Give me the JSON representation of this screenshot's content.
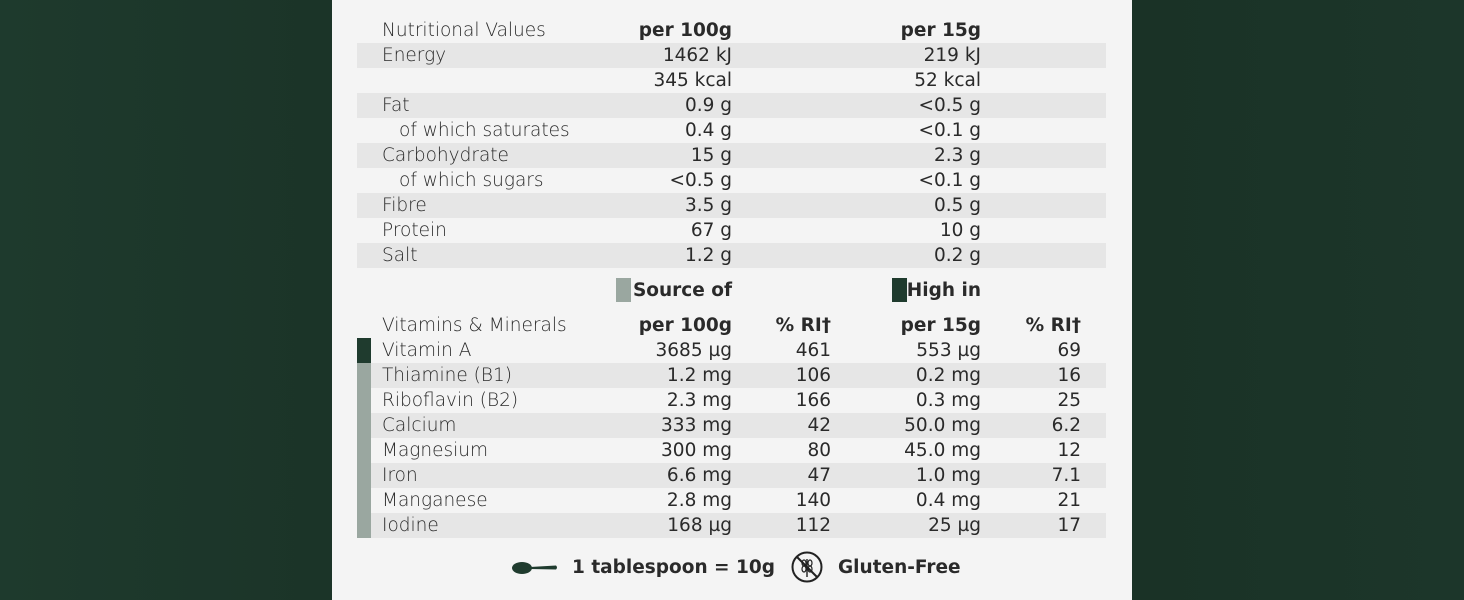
{
  "nutrition": {
    "header": {
      "label": "Nutritional Values",
      "per100": "per 100g",
      "perServing": "per 15g"
    },
    "rows": [
      {
        "label": "Energy",
        "per100": "1462 kJ",
        "perServing": "219 kJ"
      },
      {
        "label": "",
        "per100": "345 kcal",
        "perServing": "52 kcal"
      },
      {
        "label": "Fat",
        "per100": "0.9 g",
        "perServing": "<0.5 g"
      },
      {
        "label": "of which saturates",
        "per100": "0.4 g",
        "perServing": "<0.1 g"
      },
      {
        "label": "Carbohydrate",
        "per100": "15 g",
        "perServing": "2.3 g"
      },
      {
        "label": "of which sugars",
        "per100": "<0.5 g",
        "perServing": "<0.1 g"
      },
      {
        "label": "Fibre",
        "per100": "3.5 g",
        "perServing": "0.5 g"
      },
      {
        "label": "Protein",
        "per100": "67 g",
        "perServing": "10 g"
      },
      {
        "label": "Salt",
        "per100": "1.2 g",
        "perServing": "0.2 g"
      }
    ]
  },
  "legend": {
    "source": "Source of",
    "high": "High in",
    "sourceColor": "#9aa7a0",
    "highColor": "#1f3b2e"
  },
  "vitamins": {
    "header": {
      "label": "Vitamins & Minerals",
      "per100": "per 100g",
      "ri100": "% RI†",
      "perServing": "per 15g",
      "riServing": "% RI†"
    },
    "rows": [
      {
        "label": "Vitamin A",
        "per100": "3685 µg",
        "ri100": "461",
        "perServing": "553 µg",
        "riServing": "69"
      },
      {
        "label": "Thiamine (B1)",
        "per100": "1.2 mg",
        "ri100": "106",
        "perServing": "0.2 mg",
        "riServing": "16"
      },
      {
        "label": "Riboflavin (B2)",
        "per100": "2.3 mg",
        "ri100": "166",
        "perServing": "0.3 mg",
        "riServing": "25"
      },
      {
        "label": "Calcium",
        "per100": "333 mg",
        "ri100": "42",
        "perServing": "50.0 mg",
        "riServing": "6.2"
      },
      {
        "label": "Magnesium",
        "per100": "300 mg",
        "ri100": "80",
        "perServing": "45.0 mg",
        "riServing": "12"
      },
      {
        "label": "Iron",
        "per100": "6.6 mg",
        "ri100": "47",
        "perServing": "1.0 mg",
        "riServing": "7.1"
      },
      {
        "label": "Manganese",
        "per100": "2.8 mg",
        "ri100": "140",
        "perServing": "0.4 mg",
        "riServing": "21"
      },
      {
        "label": "Iodine",
        "per100": "168 µg",
        "ri100": "112",
        "perServing": "25 µg",
        "riServing": "17"
      }
    ]
  },
  "footer": {
    "spoon": "1 tablespoon = 10g",
    "gluten": "Gluten-Free"
  }
}
